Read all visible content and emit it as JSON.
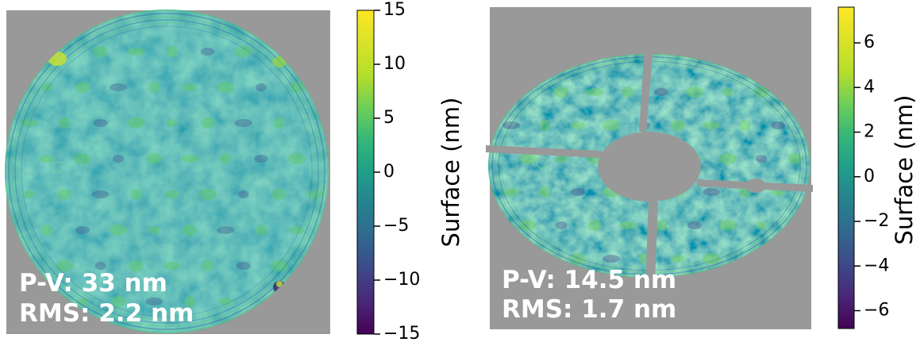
{
  "chart_data": [
    {
      "type": "heatmap",
      "title": "",
      "aperture": "full circular mirror",
      "background_color": "#999999",
      "colormap": "viridis",
      "colorbar_label": "Surface (nm)",
      "colorbar_range": [
        -15,
        15
      ],
      "colorbar_ticks": [
        15,
        10,
        5,
        0,
        -5,
        -10,
        -15
      ],
      "tick_labels": [
        "15",
        "10",
        "5",
        "0",
        "−5",
        "−10",
        "−15"
      ],
      "annotations": [
        "P-V: 33 nm",
        "RMS: 2.2 nm"
      ]
    },
    {
      "type": "heatmap",
      "title": "",
      "aperture": "elliptical ring split into four segments with central hole",
      "background_color": "#999999",
      "colormap": "viridis",
      "colorbar_label": "Surface (nm)",
      "colorbar_range": [
        -6.8,
        7.6
      ],
      "colorbar_ticks": [
        6,
        4,
        2,
        0,
        -2,
        -4,
        -6
      ],
      "tick_labels": [
        "6",
        "4",
        "2",
        "0",
        "−2",
        "−4",
        "−6"
      ],
      "annotations": [
        "P-V: 14.5 nm",
        "RMS: 1.7 nm"
      ]
    }
  ]
}
